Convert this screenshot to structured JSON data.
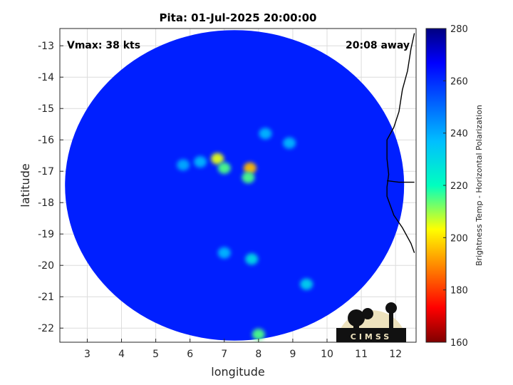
{
  "chart_data": {
    "type": "heatmap",
    "title": "Pita: 01-Jul-2025 20:00:00",
    "xlabel": "longitude",
    "ylabel": "latitude",
    "xlim": [
      2.2,
      12.6
    ],
    "ylim": [
      -22.45,
      -12.45
    ],
    "xticks": [
      3,
      4,
      5,
      6,
      7,
      8,
      9,
      10,
      11,
      12
    ],
    "yticks": [
      -13,
      -14,
      -15,
      -16,
      -17,
      -18,
      -19,
      -20,
      -21,
      -22
    ],
    "grid": true,
    "annotations": {
      "top_left": "Vmax: 38 kts",
      "top_right": "20:08 away"
    },
    "colorbar": {
      "label": "Brightness Temp - Horizontal Polarization",
      "range": [
        160,
        280
      ],
      "ticks": [
        280,
        260,
        240,
        220,
        200,
        180,
        160
      ],
      "colormap": "jet",
      "position": "right"
    },
    "swath": {
      "center": [
        7.3,
        -17.45
      ],
      "radius_lon": 4.95,
      "radius_lat": 4.95,
      "background_value": 262
    },
    "features": [
      {
        "lon": 6.8,
        "lat": -16.6,
        "value": 205
      },
      {
        "lon": 7.0,
        "lat": -16.9,
        "value": 215
      },
      {
        "lon": 7.75,
        "lat": -16.9,
        "value": 195
      },
      {
        "lon": 7.7,
        "lat": -17.2,
        "value": 215
      },
      {
        "lon": 8.2,
        "lat": -15.8,
        "value": 238
      },
      {
        "lon": 8.9,
        "lat": -16.1,
        "value": 238
      },
      {
        "lon": 7.8,
        "lat": -19.8,
        "value": 230
      },
      {
        "lon": 7.0,
        "lat": -19.6,
        "value": 238
      },
      {
        "lon": 9.4,
        "lat": -20.6,
        "value": 232
      },
      {
        "lon": 8.0,
        "lat": -22.2,
        "value": 215
      },
      {
        "lon": 6.3,
        "lat": -16.7,
        "value": 238
      },
      {
        "lon": 5.8,
        "lat": -16.8,
        "value": 240
      }
    ],
    "coastline": [
      [
        12.55,
        -12.6
      ],
      [
        12.45,
        -13.1
      ],
      [
        12.35,
        -13.8
      ],
      [
        12.2,
        -14.4
      ],
      [
        12.1,
        -15.1
      ],
      [
        11.95,
        -15.6
      ],
      [
        11.75,
        -16.0
      ],
      [
        11.75,
        -16.6
      ],
      [
        11.8,
        -17.1
      ],
      [
        11.75,
        -17.5
      ],
      [
        11.75,
        -17.8
      ],
      [
        11.95,
        -18.4
      ],
      [
        12.2,
        -18.8
      ],
      [
        12.45,
        -19.3
      ],
      [
        12.55,
        -19.6
      ]
    ],
    "border": [
      [
        11.75,
        -17.3
      ],
      [
        12.1,
        -17.35
      ],
      [
        12.55,
        -17.35
      ]
    ]
  },
  "logo": {
    "text": "CIMSS"
  }
}
